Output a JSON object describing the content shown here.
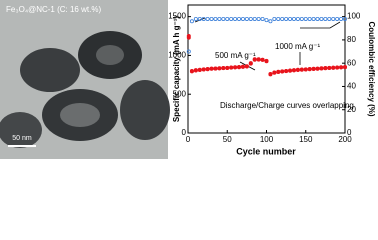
{
  "image_panel": {
    "label": "Fe₃O₄@NC-1 (C: 16 wt.%)",
    "scale_bar": "50 nm"
  },
  "chart_data": {
    "type": "scatter",
    "xlabel": "Cycle number",
    "ylabel": "Specific capacity (mA h g⁻¹)",
    "y2label": "Coulombic efficiency (%)",
    "annotations": [
      "500 mA g⁻¹",
      "1000 mA g⁻¹",
      "Discharge/Charge curves overlapping"
    ],
    "x": [
      1,
      5,
      10,
      15,
      20,
      25,
      30,
      35,
      40,
      45,
      50,
      55,
      60,
      65,
      70,
      75,
      80,
      85,
      90,
      95,
      100,
      105,
      110,
      115,
      120,
      125,
      130,
      135,
      140,
      145,
      150,
      155,
      160,
      165,
      170,
      175,
      180,
      185,
      190,
      195,
      200
    ],
    "series": [
      {
        "color": "#e8141c",
        "values": [
          1250,
          800,
          810,
          815,
          820,
          825,
          830,
          832,
          835,
          838,
          840,
          845,
          848,
          850,
          855,
          860,
          900,
          950,
          950,
          945,
          930,
          760,
          780,
          790,
          795,
          800,
          805,
          810,
          815,
          818,
          820,
          825,
          828,
          830,
          835,
          838,
          840,
          842,
          845,
          848,
          850
        ]
      },
      {
        "color": "#e8141c",
        "values": [
          1230,
          795,
          806,
          812,
          818,
          822,
          828,
          830,
          833,
          836,
          838,
          842,
          846,
          848,
          852,
          857,
          895,
          945,
          946,
          942,
          925,
          755,
          776,
          787,
          792,
          797,
          802,
          807,
          812,
          815,
          818,
          822,
          825,
          828,
          832,
          835,
          838,
          840,
          843,
          846,
          848
        ]
      },
      {
        "color": "#3b7fd9",
        "axis": "y2",
        "values": [
          70,
          96,
          98,
          98,
          98,
          98,
          98,
          98,
          98,
          98,
          98,
          98,
          98,
          98,
          98,
          98,
          98,
          98,
          98,
          98,
          97,
          96,
          98,
          98,
          98,
          98,
          98,
          98,
          98,
          98,
          98,
          98,
          98,
          98,
          98,
          98,
          98,
          98,
          98,
          98,
          98
        ]
      }
    ],
    "xlim": [
      0,
      200
    ],
    "xticks": [
      0,
      50,
      100,
      150,
      200
    ],
    "ylim": [
      0,
      1650
    ],
    "yticks": [
      0,
      500,
      1000,
      1500
    ],
    "y2lim": [
      0,
      110
    ],
    "y2ticks": [
      0,
      20,
      40,
      60,
      80,
      100
    ]
  }
}
